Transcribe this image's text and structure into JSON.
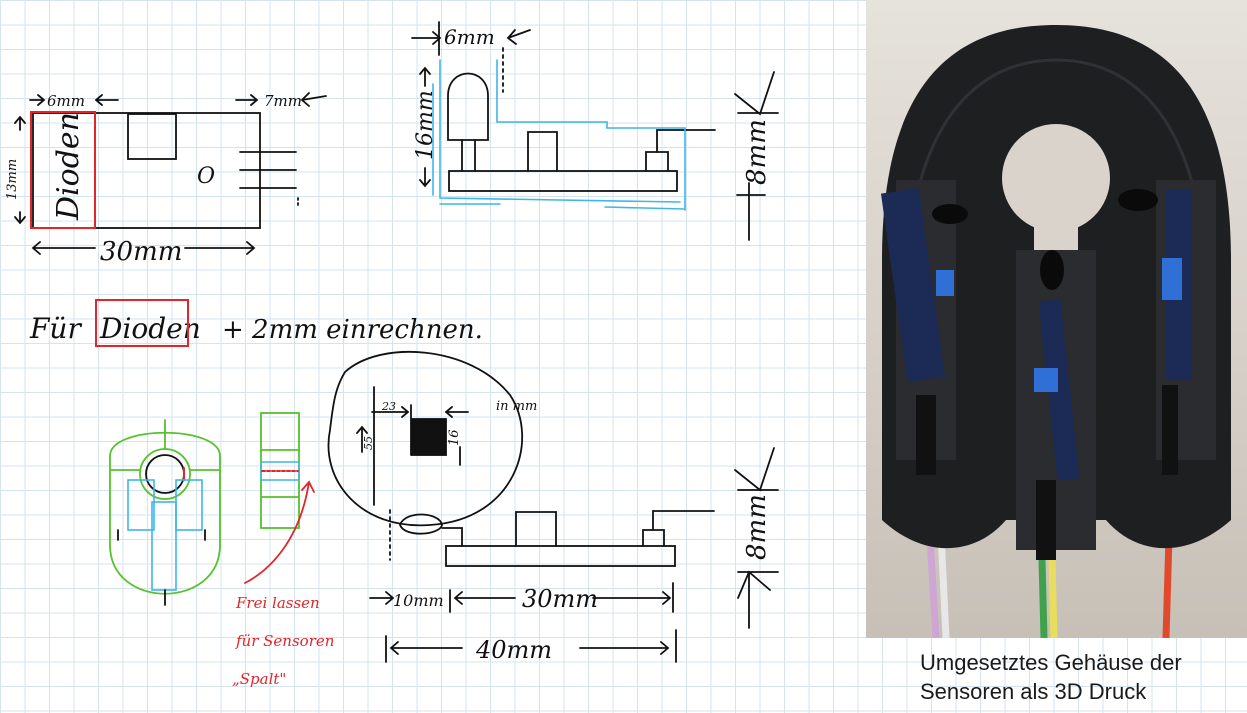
{
  "sketch_top_left": {
    "dim_6mm": "6mm",
    "dim_7mm": "7mm",
    "dim_13mm": "13mm",
    "dim_30mm": "30mm",
    "box_label": "Dioden",
    "component_label": "O"
  },
  "sketch_top_side": {
    "dim_6mm": "6mm",
    "dim_16mm": "16mm",
    "dim_8mm": "8mm"
  },
  "note": {
    "prefix": "Für",
    "highlight": "Dioden",
    "suffix": "+ 2mm einrechnen."
  },
  "sketch_bottom_side": {
    "inset_dim_23": "23",
    "inset_dim_55": "55",
    "inset_dim_16": "16",
    "inset_unit": "in mm",
    "dim_10mm": "10mm",
    "dim_30mm": "30mm",
    "dim_40mm": "40mm",
    "dim_8mm": "8mm"
  },
  "red_note": {
    "line1": "Frei lassen",
    "line2": "für Sensoren",
    "line3": "„Spalt\""
  },
  "caption": {
    "line1": "Umgesetztes Gehäuse der",
    "line2": "Sensoren als 3D Druck"
  },
  "colors": {
    "ink": "#111111",
    "red": "#e0262a",
    "cyan": "#3fb6e8",
    "green": "#56c22d",
    "grid": "#d5e3ef"
  }
}
